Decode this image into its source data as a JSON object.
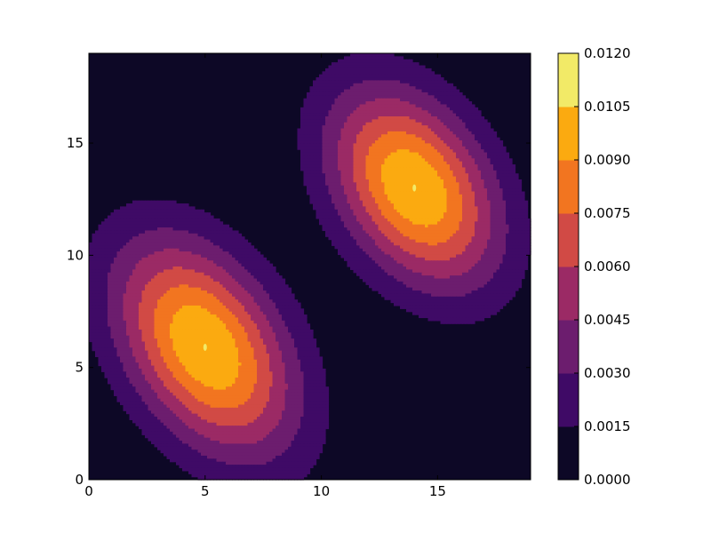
{
  "chart_data": {
    "type": "contourf",
    "xlim": [
      0,
      19
    ],
    "ylim": [
      0,
      19
    ],
    "x_ticks": [
      {
        "value": 0,
        "label": "0"
      },
      {
        "value": 5,
        "label": "5"
      },
      {
        "value": 10,
        "label": "10"
      },
      {
        "value": 15,
        "label": "15"
      }
    ],
    "y_ticks": [
      {
        "value": 0,
        "label": "0"
      },
      {
        "value": 5,
        "label": "5"
      },
      {
        "value": 10,
        "label": "10"
      },
      {
        "value": 15,
        "label": "15"
      }
    ],
    "colormap": "inferno",
    "level_colors": [
      "#0d0826",
      "#3f0a66",
      "#6c1d6e",
      "#9b2a65",
      "#d14a45",
      "#f27520",
      "#fbaa10",
      "#f2ea67"
    ],
    "levels": [
      0.0,
      0.0015,
      0.003,
      0.0045,
      0.006,
      0.0075,
      0.009,
      0.0105,
      0.012
    ],
    "colorbar": {
      "tick_labels": [
        "0.0000",
        "0.0015",
        "0.0030",
        "0.0045",
        "0.0060",
        "0.0075",
        "0.0090",
        "0.0105",
        "0.0120"
      ]
    },
    "peaks": [
      {
        "x": 5.0,
        "y": 5.9,
        "peak_value": 0.0108
      },
      {
        "x": 14.0,
        "y": 13.0,
        "peak_value": 0.0108
      }
    ]
  }
}
